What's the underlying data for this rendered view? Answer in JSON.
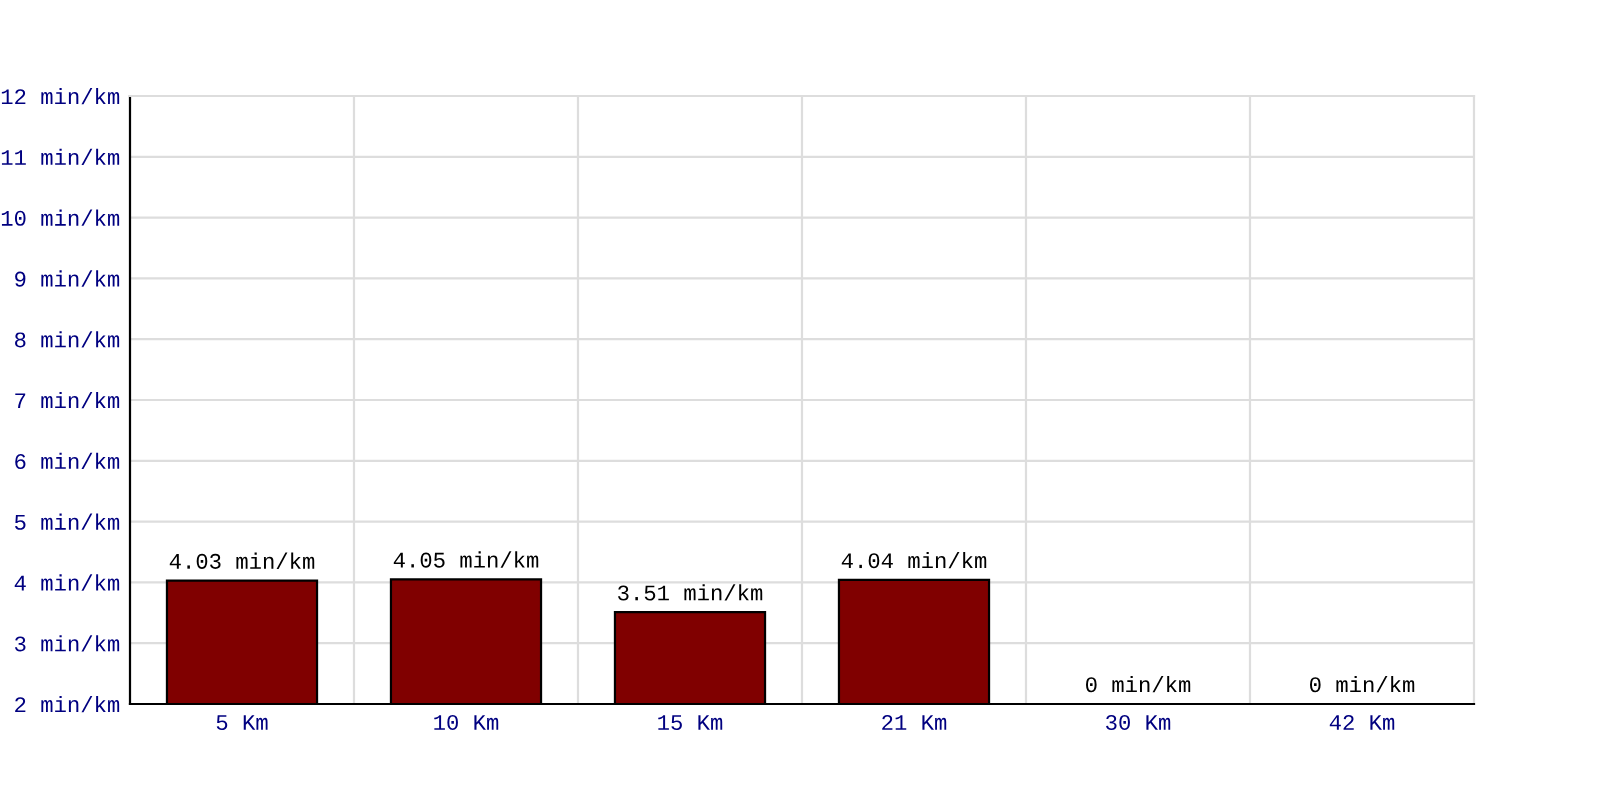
{
  "chart_data": {
    "type": "bar",
    "categories": [
      "5 Km",
      "10 Km",
      "15 Km",
      "21 Km",
      "30 Km",
      "42 Km"
    ],
    "values": [
      4.03,
      4.05,
      3.51,
      4.04,
      null,
      null
    ],
    "value_labels": [
      "4.03 min/km",
      "4.05 min/km",
      "3.51 min/km",
      "4.04 min/km",
      "0 min/km",
      "0 min/km"
    ],
    "color": "#800000",
    "ylim": [
      2,
      12
    ],
    "yticks": [
      {
        "value": 2,
        "label": "2 min/km"
      },
      {
        "value": 3,
        "label": "3 min/km"
      },
      {
        "value": 4,
        "label": "4 min/km"
      },
      {
        "value": 5,
        "label": "5 min/km"
      },
      {
        "value": 6,
        "label": "6 min/km"
      },
      {
        "value": 7,
        "label": "7 min/km"
      },
      {
        "value": 8,
        "label": "8 min/km"
      },
      {
        "value": 9,
        "label": "9 min/km"
      },
      {
        "value": 10,
        "label": "10 min/km"
      },
      {
        "value": 11,
        "label": "11 min/km"
      },
      {
        "value": 12,
        "label": "12 min/km"
      }
    ],
    "grid": true
  }
}
